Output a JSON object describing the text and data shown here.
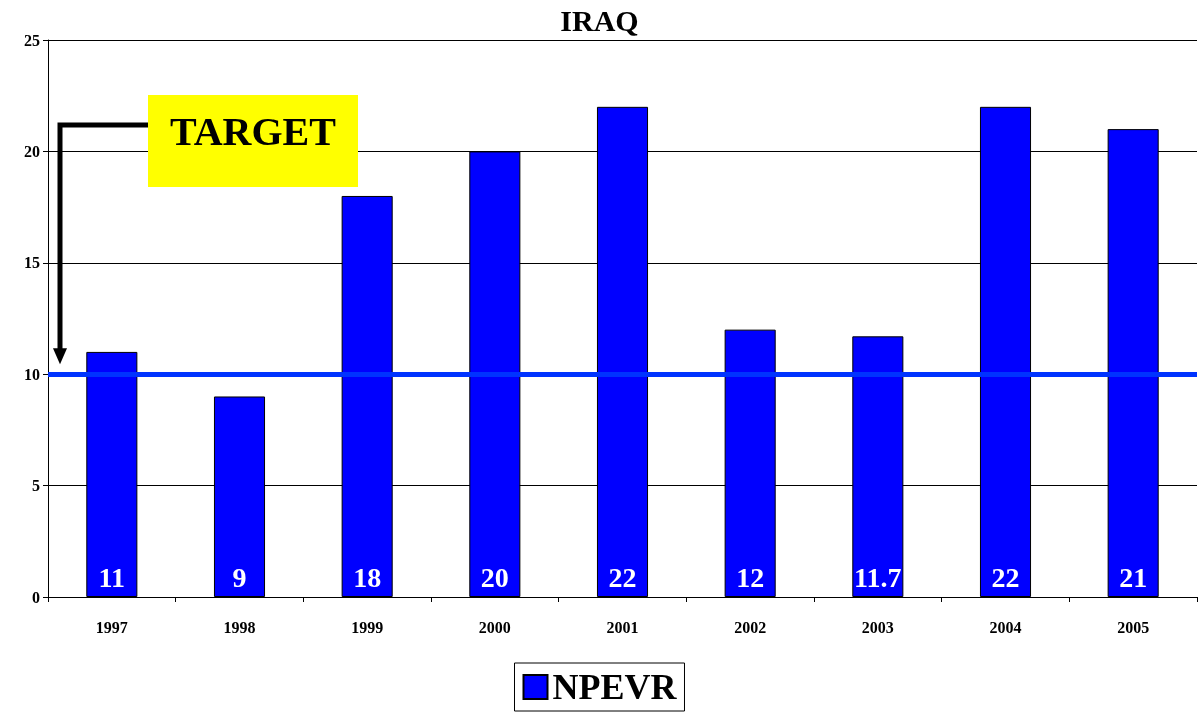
{
  "chart_data": {
    "type": "bar",
    "title": "IRAQ",
    "categories": [
      "1997",
      "1998",
      "1999",
      "2000",
      "2001",
      "2002",
      "2003",
      "2004",
      "2005"
    ],
    "series": [
      {
        "name": "NPEVR",
        "color": "#0000ff",
        "values": [
          11,
          9,
          18,
          20,
          22,
          12,
          11.7,
          22,
          21
        ]
      }
    ],
    "data_labels": true,
    "ylim": [
      0,
      25
    ],
    "yticks": [
      0,
      5,
      10,
      15,
      20,
      25
    ],
    "grid": "y",
    "legend": "bottom",
    "annotations": [
      "TARGET"
    ],
    "ref_lines": [
      {
        "axis": "y",
        "value": 10,
        "color": "#0033ff"
      }
    ]
  }
}
